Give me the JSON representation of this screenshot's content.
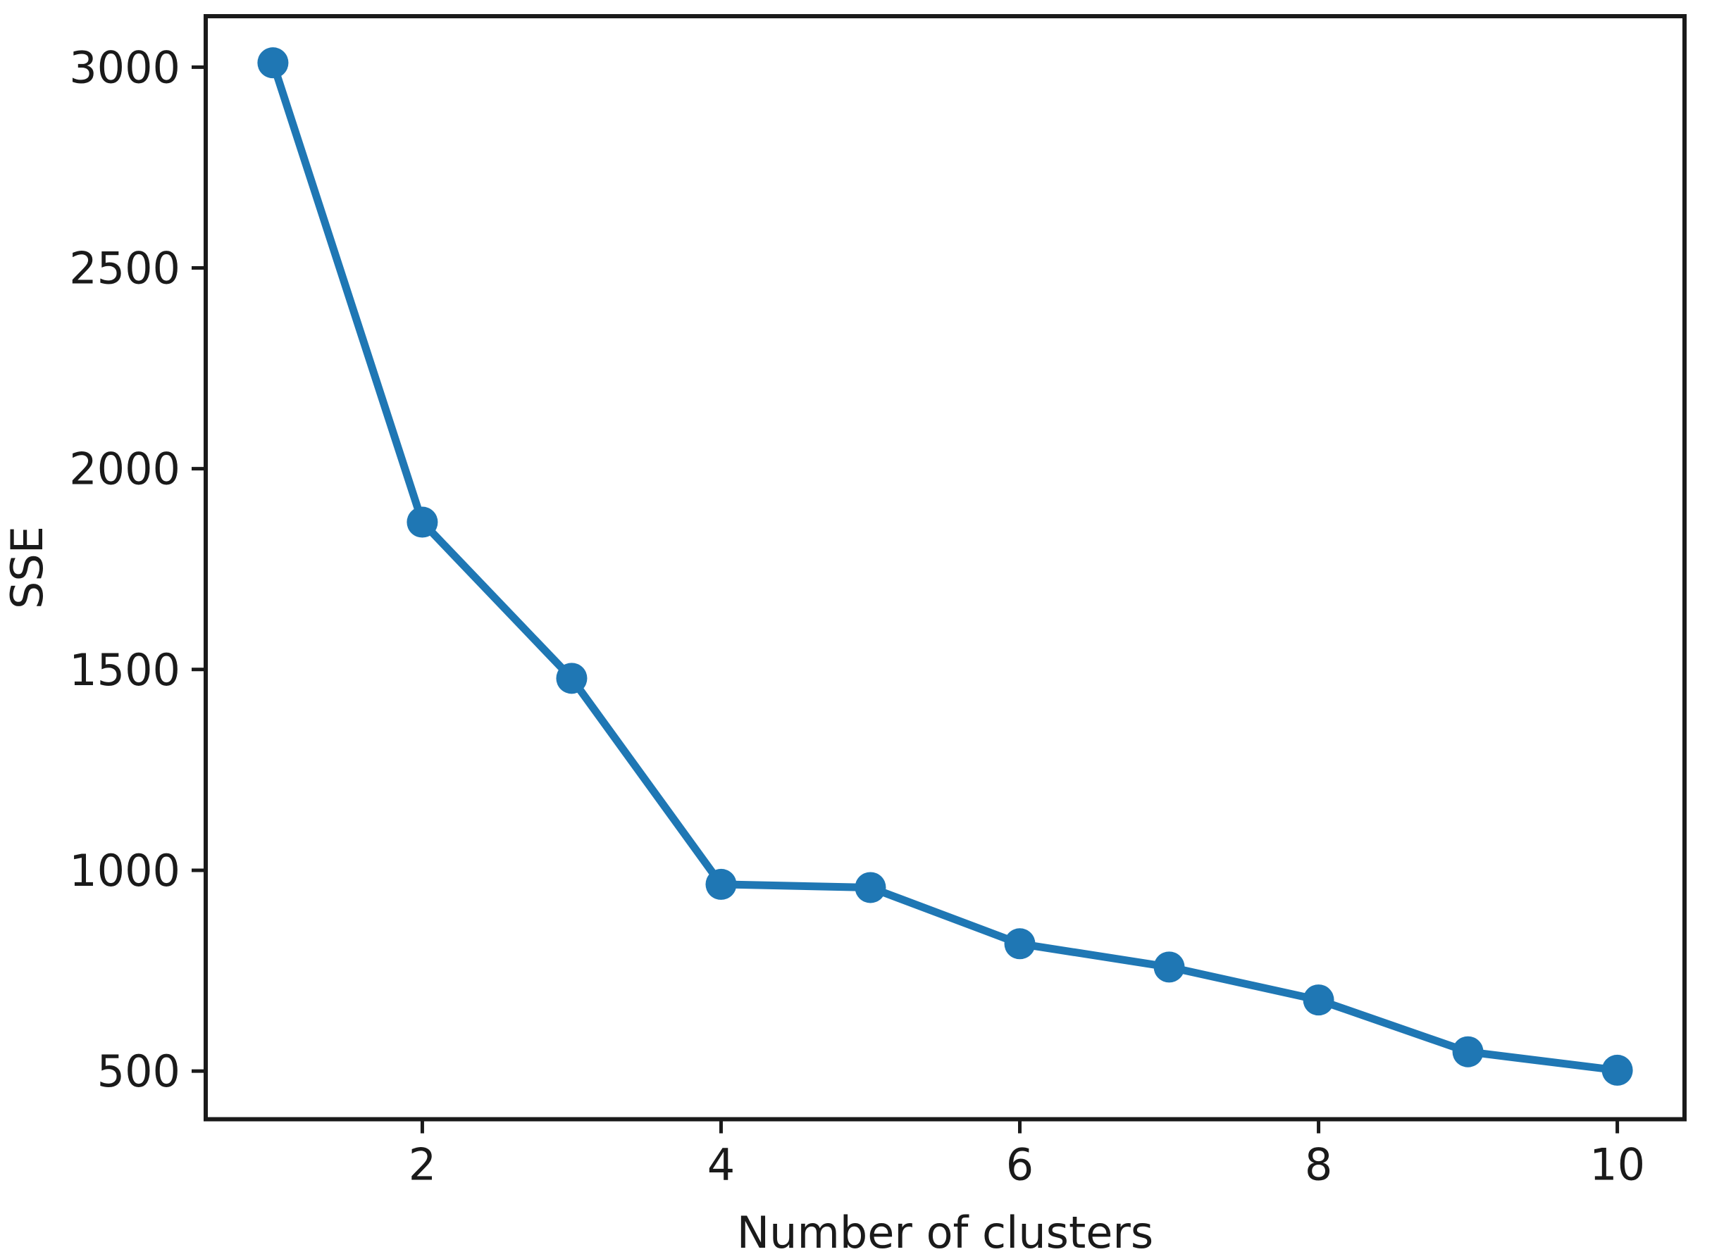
{
  "chart_data": {
    "type": "line",
    "title": "",
    "xlabel": "Number of clusters",
    "ylabel": "SSE",
    "x": [
      1,
      2,
      3,
      4,
      5,
      6,
      7,
      8,
      9,
      10
    ],
    "series": [
      {
        "name": "SSE",
        "values": [
          3011,
          1867,
          1478,
          965,
          957,
          817,
          759,
          677,
          548,
          502
        ]
      }
    ],
    "xticks": [
      2,
      4,
      6,
      8,
      10
    ],
    "yticks": [
      500,
      1000,
      1500,
      2000,
      2500,
      3000
    ],
    "xtick_labels": [
      "2",
      "4",
      "6",
      "8",
      "10"
    ],
    "ytick_labels": [
      "500",
      "1000",
      "1500",
      "2000",
      "2500",
      "3000"
    ],
    "xlim": [
      0.55,
      10.45
    ],
    "ylim": [
      380,
      3127
    ],
    "grid": false,
    "legend": "none",
    "line_color": "#1f77b4",
    "marker": "circle",
    "axis_color": "#1a1a1a",
    "text_color": "#1a1a1a",
    "background": "#ffffff"
  }
}
